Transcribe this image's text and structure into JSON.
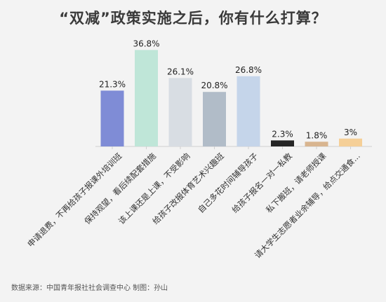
{
  "chart_data": {
    "type": "bar",
    "title": "“双减”政策实施之后，你有什么打算？",
    "categories": [
      "申请退费，不再给孩子报课外培训班",
      "保持观望，看后续配套措施",
      "该上课还是上课，不受影响",
      "给孩子改报体育艺术兴趣班",
      "自己多花时间辅导孩子",
      "给孩子报名一对一私教",
      "私下搬班，请老师授课",
      "请大学生志愿者业余辅导，给点交通食..."
    ],
    "values": [
      21.3,
      36.8,
      26.1,
      20.8,
      26.8,
      2.3,
      1.8,
      3
    ],
    "value_labels": [
      "21.3%",
      "36.8%",
      "26.1%",
      "20.8%",
      "26.8%",
      "2.3%",
      "1.8%",
      "3%"
    ],
    "colors": [
      "#7f8cd6",
      "#bfe6d8",
      "#d8dde3",
      "#b1bcc8",
      "#c5d5ea",
      "#252525",
      "#d8b590",
      "#f5cf97"
    ],
    "xlabel": "",
    "ylabel": "",
    "ylim": [
      0,
      40
    ],
    "grid": false
  },
  "source_text": "数据来源：中国青年报社社会调查中心 制图：孙山"
}
